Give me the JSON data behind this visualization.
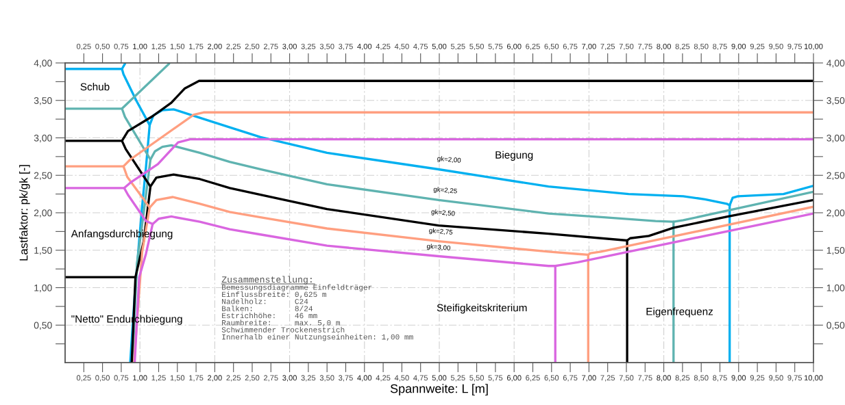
{
  "chart_data": {
    "type": "line",
    "xlabel": "Spannweite: L [m]",
    "ylabel": "Lastfaktor: pk/gk [-]",
    "xlim": [
      0,
      10
    ],
    "ylim": [
      0,
      4
    ],
    "x2lim": [
      0,
      10
    ],
    "y2lim": [
      0,
      4
    ],
    "grid": true,
    "line_style": "solid",
    "marker": "none",
    "xticks": [
      {
        "value": 0.25,
        "label": "0,25"
      },
      {
        "value": 0.5,
        "label": "0,50"
      },
      {
        "value": 0.75,
        "label": "0,75"
      },
      {
        "value": 1,
        "label": "1,00"
      },
      {
        "value": 1.25,
        "label": "1,25"
      },
      {
        "value": 1.5,
        "label": "1,50"
      },
      {
        "value": 1.75,
        "label": "1,75"
      },
      {
        "value": 2,
        "label": "2,00"
      },
      {
        "value": 2.25,
        "label": "2,25"
      },
      {
        "value": 2.5,
        "label": "2,50"
      },
      {
        "value": 2.75,
        "label": "2,75"
      },
      {
        "value": 3,
        "label": "3,00"
      },
      {
        "value": 3.25,
        "label": "3,25"
      },
      {
        "value": 3.5,
        "label": "3,50"
      },
      {
        "value": 3.75,
        "label": "3,75"
      },
      {
        "value": 4,
        "label": "4,00"
      },
      {
        "value": 4.25,
        "label": "4,25"
      },
      {
        "value": 4.5,
        "label": "4,50"
      },
      {
        "value": 4.75,
        "label": "4,75"
      },
      {
        "value": 5,
        "label": "5,00"
      },
      {
        "value": 5.25,
        "label": "5,25"
      },
      {
        "value": 5.5,
        "label": "5,50"
      },
      {
        "value": 5.75,
        "label": "5,75"
      },
      {
        "value": 6,
        "label": "6,00"
      },
      {
        "value": 6.25,
        "label": "6,25"
      },
      {
        "value": 6.5,
        "label": "6,50"
      },
      {
        "value": 6.75,
        "label": "6,75"
      },
      {
        "value": 7,
        "label": "7,00"
      },
      {
        "value": 7.25,
        "label": "7,25"
      },
      {
        "value": 7.5,
        "label": "7,50"
      },
      {
        "value": 7.75,
        "label": "7,75"
      },
      {
        "value": 8,
        "label": "8,00"
      },
      {
        "value": 8.25,
        "label": "8,25"
      },
      {
        "value": 8.5,
        "label": "8,50"
      },
      {
        "value": 8.75,
        "label": "8,75"
      },
      {
        "value": 9,
        "label": "9,00"
      },
      {
        "value": 9.25,
        "label": "9,25"
      },
      {
        "value": 9.5,
        "label": "9,50"
      },
      {
        "value": 9.75,
        "label": "9,75"
      },
      {
        "value": 10,
        "label": "10,00"
      }
    ],
    "x2ticks": [
      {
        "value": 0.25,
        "label": "0,25"
      },
      {
        "value": 0.5,
        "label": "0,50"
      },
      {
        "value": 0.75,
        "label": "0,75"
      },
      {
        "value": 1,
        "label": "1,00"
      },
      {
        "value": 1.25,
        "label": "1,25"
      },
      {
        "value": 1.5,
        "label": "1,50"
      },
      {
        "value": 1.75,
        "label": "1,75"
      },
      {
        "value": 2,
        "label": "2,00"
      },
      {
        "value": 2.25,
        "label": "2,25"
      },
      {
        "value": 2.5,
        "label": "2,50"
      },
      {
        "value": 2.75,
        "label": "2,75"
      },
      {
        "value": 3,
        "label": "3,00"
      },
      {
        "value": 3.25,
        "label": "3,25"
      },
      {
        "value": 3.5,
        "label": "3,50"
      },
      {
        "value": 3.75,
        "label": "3,75"
      },
      {
        "value": 4,
        "label": "4,00"
      },
      {
        "value": 4.25,
        "label": "4,25"
      },
      {
        "value": 4.5,
        "label": "4,50"
      },
      {
        "value": 4.75,
        "label": "4,75"
      },
      {
        "value": 5,
        "label": "5,00"
      },
      {
        "value": 5.25,
        "label": "5,25"
      },
      {
        "value": 5.5,
        "label": "5,50"
      },
      {
        "value": 5.75,
        "label": "5,75"
      },
      {
        "value": 6,
        "label": "6,00"
      },
      {
        "value": 6.25,
        "label": "6,25"
      },
      {
        "value": 6.5,
        "label": "6,50"
      },
      {
        "value": 6.75,
        "label": "6,75"
      },
      {
        "value": 7,
        "label": "7,00"
      },
      {
        "value": 7.25,
        "label": "7,25"
      },
      {
        "value": 7.5,
        "label": "7,50"
      },
      {
        "value": 7.75,
        "label": "7,75"
      },
      {
        "value": 8,
        "label": "8,00"
      },
      {
        "value": 8.25,
        "label": "8,25"
      },
      {
        "value": 8.5,
        "label": "8,50"
      },
      {
        "value": 8.75,
        "label": "8,75"
      },
      {
        "value": 9,
        "label": "9,00"
      },
      {
        "value": 9.25,
        "label": "9,25"
      },
      {
        "value": 9.5,
        "label": "9,50"
      },
      {
        "value": 9.75,
        "label": "9,75"
      },
      {
        "value": 10,
        "label": "10,00"
      }
    ],
    "yticks": [
      {
        "value": 0.25,
        "label": null
      },
      {
        "value": 0.5,
        "label": "0,50"
      },
      {
        "value": 0.75,
        "label": null
      },
      {
        "value": 1,
        "label": "1,00"
      },
      {
        "value": 1.25,
        "label": null
      },
      {
        "value": 1.5,
        "label": "1,50"
      },
      {
        "value": 1.75,
        "label": null
      },
      {
        "value": 2,
        "label": "2,00"
      },
      {
        "value": 2.25,
        "label": null
      },
      {
        "value": 2.5,
        "label": "2,50"
      },
      {
        "value": 2.75,
        "label": null
      },
      {
        "value": 3,
        "label": "3,00"
      },
      {
        "value": 3.25,
        "label": null
      },
      {
        "value": 3.5,
        "label": "3,50"
      },
      {
        "value": 3.75,
        "label": null
      },
      {
        "value": 4,
        "label": "4,00"
      }
    ],
    "y2ticks": [
      {
        "value": 0.25,
        "label": null
      },
      {
        "value": 0.5,
        "label": "0,50"
      },
      {
        "value": 0.75,
        "label": null
      },
      {
        "value": 1,
        "label": "1,00"
      },
      {
        "value": 1.25,
        "label": null
      },
      {
        "value": 1.5,
        "label": "1,50"
      },
      {
        "value": 1.75,
        "label": null
      },
      {
        "value": 2,
        "label": "2,00"
      },
      {
        "value": 2.25,
        "label": null
      },
      {
        "value": 2.5,
        "label": "2,50"
      },
      {
        "value": 2.75,
        "label": null
      },
      {
        "value": 3,
        "label": "3,00"
      },
      {
        "value": 3.25,
        "label": null
      },
      {
        "value": 3.5,
        "label": "3,50"
      },
      {
        "value": 3.75,
        "label": null
      },
      {
        "value": 4,
        "label": "4,00"
      }
    ],
    "series": [
      {
        "color": "#00b0f0",
        "x": [
          0,
          0.76,
          0.8,
          null,
          0.76,
          0.78,
          0.95,
          1.13,
          1.08,
          1.04,
          0.99,
          0.93,
          0.87,
          null,
          1.13,
          1.18,
          1.3,
          1.45,
          1.7,
          2.2,
          2.61,
          3.5,
          4.99,
          6.46,
          7.53,
          8.26,
          8.55,
          8.84,
          8.88,
          null,
          8.88,
          8.88,
          null,
          8.88,
          8.92,
          8.99,
          9.6,
          10
        ],
        "values": [
          3.92,
          3.92,
          3.99,
          null,
          3.92,
          3.85,
          3.5,
          3.17,
          2.6,
          2.2,
          1.63,
          0.9,
          0,
          null,
          3.17,
          3.3,
          3.37,
          3.38,
          3.3,
          3.14,
          3.01,
          2.8,
          2.58,
          2.35,
          2.25,
          2.22,
          2.18,
          2.12,
          2.1,
          null,
          2.1,
          0,
          null,
          2.1,
          2.2,
          2.22,
          2.25,
          2.36
        ]
      },
      {
        "color": "#5fb3b0",
        "x": [
          0,
          0.76,
          1.39,
          null,
          0.76,
          0.8,
          1.14,
          1.05,
          0.96,
          0.9,
          null,
          1.14,
          1.2,
          1.3,
          1.42,
          1.8,
          2.2,
          2.61,
          3.5,
          4.99,
          6.46,
          7.2,
          7.89,
          8.13,
          null,
          8.13,
          8.13,
          null,
          8.13,
          8.26,
          10
        ],
        "values": [
          3.39,
          3.39,
          3.99,
          null,
          3.39,
          3.28,
          2.71,
          2.0,
          1.32,
          0,
          null,
          2.71,
          2.82,
          2.88,
          2.9,
          2.8,
          2.68,
          2.58,
          2.38,
          2.17,
          1.99,
          1.94,
          1.89,
          1.88,
          null,
          1.88,
          0,
          null,
          1.88,
          1.9,
          2.28
        ]
      },
      {
        "color": "#000000",
        "x": [
          0,
          0.76,
          0.84,
          1.17,
          1.42,
          1.6,
          1.79,
          10,
          null,
          0.76,
          0.81,
          1.14,
          1.05,
          0.94,
          0.89,
          null,
          1.14,
          1.22,
          1.45,
          1.8,
          2.2,
          2.61,
          3.5,
          4.99,
          6.46,
          7.51,
          null,
          7.51,
          7.51,
          null,
          7.51,
          7.55,
          7.8,
          8.13,
          8.86,
          10,
          null,
          0,
          0.94
        ],
        "values": [
          2.96,
          2.96,
          3.09,
          3.29,
          3.47,
          3.66,
          3.76,
          3.76,
          null,
          2.96,
          2.85,
          2.35,
          1.62,
          1.14,
          0,
          null,
          2.35,
          2.47,
          2.51,
          2.45,
          2.33,
          2.24,
          2.05,
          1.83,
          1.72,
          1.63,
          null,
          1.63,
          0,
          null,
          1.63,
          1.66,
          1.69,
          1.8,
          1.95,
          2.17,
          null,
          1.14,
          1.14
        ]
      },
      {
        "color": "#ff9f80",
        "x": [
          0,
          0.78,
          0.87,
          1.72,
          1.85,
          10,
          null,
          0.78,
          0.83,
          1.13,
          1.03,
          0.92,
          null,
          1.13,
          1.22,
          1.44,
          1.8,
          2.2,
          2.61,
          3.5,
          4.99,
          6.46,
          6.85,
          6.99,
          null,
          6.99,
          6.99,
          null,
          6.99,
          7.02,
          7.16,
          10
        ],
        "values": [
          2.62,
          2.62,
          2.71,
          3.31,
          3.34,
          3.34,
          null,
          2.62,
          2.48,
          2.07,
          1.48,
          0,
          null,
          2.07,
          2.17,
          2.21,
          2.12,
          2.01,
          1.94,
          1.79,
          1.62,
          1.48,
          1.45,
          1.44,
          null,
          1.44,
          0,
          null,
          1.44,
          1.46,
          1.48,
          2.08
        ]
      },
      {
        "color": "#d966e0",
        "x": [
          0,
          0.79,
          0.87,
          1.24,
          1.51,
          1.67,
          10,
          null,
          0.79,
          0.84,
          1.08,
          1.17,
          1.25,
          1.42,
          1.8,
          2.2,
          2.61,
          3.5,
          4.99,
          6.46,
          6.55,
          null,
          6.55,
          6.55,
          null,
          6.55,
          6.61,
          6.85,
          10,
          null,
          1.17,
          1.08,
          0.99,
          0.93
        ],
        "values": [
          2.33,
          2.33,
          2.4,
          2.65,
          2.94,
          2.98,
          2.98,
          null,
          2.33,
          2.24,
          1.89,
          1.85,
          1.92,
          1.95,
          1.88,
          1.78,
          1.71,
          1.56,
          1.42,
          1.29,
          1.29,
          null,
          1.29,
          0,
          null,
          1.29,
          1.3,
          1.34,
          1.99,
          null,
          1.85,
          1.45,
          1.14,
          0
        ]
      }
    ],
    "annotations": [
      "gk=2,00",
      "gk=2,25",
      "gk=2,50",
      "gk=2,75",
      "gk=3,00",
      "Schub",
      "Biegung",
      "Anfangsdurchbiegung",
      "\"Netto\" Endurchbiegung",
      "Steifigkeitskriterium",
      "Eigenfrequenz",
      "Zusammenstellung:",
      "Bemessungsdiagramme Einfeldträger\nEinflussbreite: 0,625 m\nNadelholz:      C24\nBalken:         8/24\nEstrichhöhe:    46 mm\nRaumbreite:     max. 5,0 m\nSchwimmender Trockenestrich\nInnerhalb einer Nutzungseinheiten: 1,00 mm"
    ]
  }
}
